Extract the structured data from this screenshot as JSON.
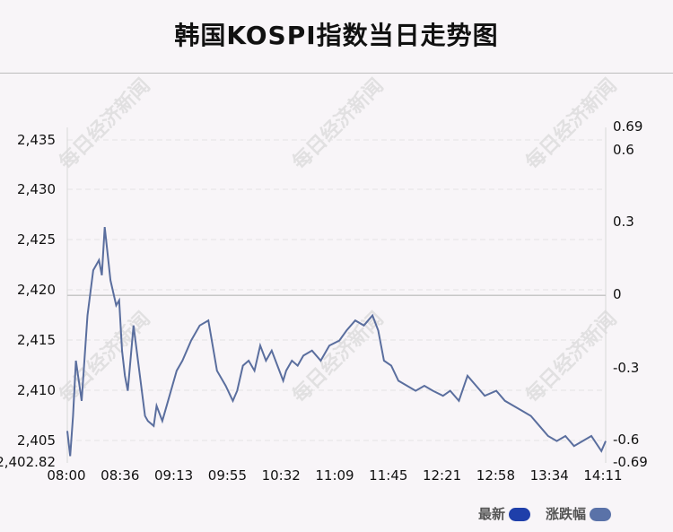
{
  "title": "韩国KOSPI指数当日走势图",
  "watermark_text": "每日经济新闻",
  "legend": [
    {
      "label": "最新",
      "color": "#1f3faa"
    },
    {
      "label": "涨跌幅",
      "color": "#5a72a8"
    }
  ],
  "chart_data": {
    "type": "line",
    "x_ticks": [
      "08:00",
      "08:36",
      "09:13",
      "09:55",
      "10:32",
      "11:09",
      "11:45",
      "12:21",
      "12:58",
      "13:34",
      "14:11"
    ],
    "y_left_ticks": [
      "2,435",
      "2,430",
      "2,425",
      "2,420",
      "2,415",
      "2,410",
      "2,405"
    ],
    "y_left_min_label": "2,402.82",
    "y_right_ticks": [
      "0.69",
      "0.6",
      "0.3",
      "0",
      "-0.3",
      "-0.6",
      "-0.69"
    ],
    "ylim": [
      2402.82,
      2436.22
    ],
    "baseline": 2419.5,
    "grid": "dashed horizontal",
    "line_color": "#5a6e9e",
    "x": [
      "08:00",
      "08:02",
      "08:04",
      "08:06",
      "08:08",
      "08:10",
      "08:14",
      "08:18",
      "08:22",
      "08:24",
      "08:26",
      "08:30",
      "08:34",
      "08:36",
      "08:38",
      "08:40",
      "08:42",
      "08:46",
      "08:50",
      "08:54",
      "08:56",
      "09:00",
      "09:02",
      "09:06",
      "09:10",
      "09:13",
      "09:16",
      "09:20",
      "09:26",
      "09:32",
      "09:38",
      "09:44",
      "09:50",
      "09:55",
      "09:58",
      "10:02",
      "10:06",
      "10:10",
      "10:14",
      "10:18",
      "10:22",
      "10:26",
      "10:30",
      "10:32",
      "10:36",
      "10:40",
      "10:44",
      "10:50",
      "10:56",
      "11:02",
      "11:09",
      "11:14",
      "11:20",
      "11:26",
      "11:32",
      "11:36",
      "11:40",
      "11:45",
      "11:50",
      "11:56",
      "12:02",
      "12:08",
      "12:14",
      "12:21",
      "12:26",
      "12:32",
      "12:38",
      "12:44",
      "12:50",
      "12:58",
      "13:04",
      "13:10",
      "13:16",
      "13:22",
      "13:28",
      "13:34",
      "13:40",
      "13:46",
      "13:52",
      "13:58",
      "14:04",
      "14:11",
      "14:14"
    ],
    "values": [
      2406.0,
      2403.5,
      2407.5,
      2413.0,
      2411.0,
      2409.0,
      2417.5,
      2422.0,
      2423.0,
      2421.5,
      2426.3,
      2421.0,
      2418.5,
      2419.0,
      2414.0,
      2411.5,
      2410.0,
      2416.5,
      2412.0,
      2407.5,
      2407.0,
      2406.5,
      2408.5,
      2407.0,
      2409.0,
      2410.5,
      2412.0,
      2413.0,
      2415.0,
      2416.5,
      2417.0,
      2412.0,
      2410.5,
      2409.0,
      2410.0,
      2412.5,
      2413.0,
      2412.0,
      2414.5,
      2413.0,
      2414.0,
      2412.5,
      2411.0,
      2412.0,
      2413.0,
      2412.5,
      2413.5,
      2414.0,
      2413.0,
      2414.5,
      2415.0,
      2416.0,
      2417.0,
      2416.5,
      2417.5,
      2416.0,
      2413.0,
      2412.5,
      2411.0,
      2410.5,
      2410.0,
      2410.5,
      2410.0,
      2409.5,
      2410.0,
      2409.0,
      2411.5,
      2410.5,
      2409.5,
      2410.0,
      2409.0,
      2408.5,
      2408.0,
      2407.5,
      2406.5,
      2405.5,
      2405.0,
      2405.5,
      2404.5,
      2405.0,
      2405.5,
      2404.0,
      2405.0
    ]
  }
}
